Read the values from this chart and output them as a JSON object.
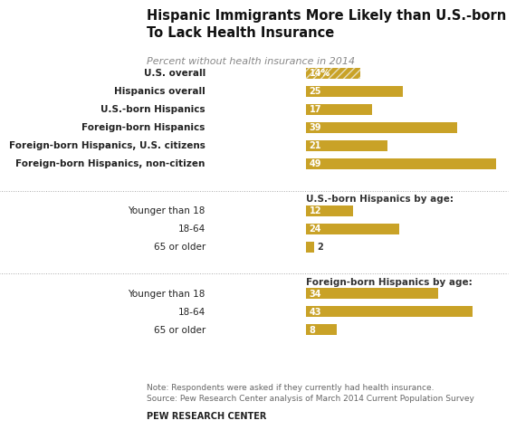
{
  "title": "Hispanic Immigrants More Likely than U.S.-born\nTo Lack Health Insurance",
  "subtitle": "Percent without health insurance in 2014",
  "bar_color": "#C9A227",
  "background_color": "#FFFFFF",
  "note": "Note: Respondents were asked if they currently had health insurance.\nSource: Pew Research Center analysis of March 2014 Current Population Survey",
  "footer": "PEW RESEARCH CENTER",
  "groups": [
    {
      "section_label": null,
      "bars": [
        {
          "label": "U.S. overall",
          "value": 14,
          "hatch": true,
          "bold": true
        },
        {
          "label": "Hispanics overall",
          "value": 25,
          "hatch": false,
          "bold": true
        },
        {
          "label": "U.S.-born Hispanics",
          "value": 17,
          "hatch": false,
          "bold": true
        },
        {
          "label": "Foreign-born Hispanics",
          "value": 39,
          "hatch": false,
          "bold": true
        },
        {
          "label": "Foreign-born Hispanics, U.S. citizens",
          "value": 21,
          "hatch": false,
          "bold": true
        },
        {
          "label": "Foreign-born Hispanics, non-citizen",
          "value": 49,
          "hatch": false,
          "bold": true
        }
      ]
    },
    {
      "section_label": "U.S.-born Hispanics by age:",
      "bars": [
        {
          "label": "Younger than 18",
          "value": 12,
          "hatch": false,
          "bold": false
        },
        {
          "label": "18-64",
          "value": 24,
          "hatch": false,
          "bold": false
        },
        {
          "label": "65 or older",
          "value": 2,
          "hatch": false,
          "bold": false
        }
      ]
    },
    {
      "section_label": "Foreign-born Hispanics by age:",
      "bars": [
        {
          "label": "Younger than 18",
          "value": 34,
          "hatch": false,
          "bold": false
        },
        {
          "label": "18-64",
          "value": 43,
          "hatch": false,
          "bold": false
        },
        {
          "label": "65 or older",
          "value": 8,
          "hatch": false,
          "bold": false
        }
      ]
    }
  ],
  "xlim": [
    0,
    52
  ],
  "bar_height": 0.6
}
